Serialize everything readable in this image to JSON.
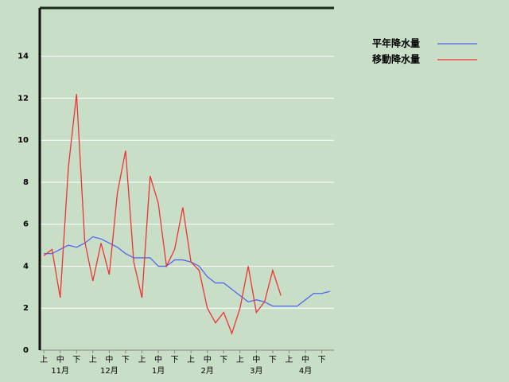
{
  "chart_data": {
    "type": "line",
    "categories": [
      "上",
      null,
      "中",
      null,
      "下",
      null,
      "上",
      null,
      "中",
      null,
      "下",
      null,
      "上",
      null,
      "中",
      null,
      "下",
      null,
      "上",
      null,
      "中",
      null,
      "下",
      null,
      "上",
      null,
      "中",
      null,
      "下",
      null,
      "上",
      null,
      "中",
      null,
      "下",
      null
    ],
    "months": [
      "11月",
      "12月",
      "1月",
      "2月",
      "3月",
      "4月"
    ],
    "series": [
      {
        "name": "平年降水量",
        "color": "#5566ee",
        "values": [
          4.6,
          4.6,
          4.8,
          5.0,
          4.9,
          5.1,
          5.4,
          5.3,
          5.1,
          4.9,
          4.6,
          4.4,
          4.4,
          4.4,
          4.0,
          4.0,
          4.3,
          4.3,
          4.2,
          4.0,
          3.5,
          3.2,
          3.2,
          2.9,
          2.6,
          2.3,
          2.4,
          2.3,
          2.1,
          2.1,
          2.1,
          2.1,
          2.4,
          2.7,
          2.7,
          2.8
        ]
      },
      {
        "name": "移動降水量",
        "color": "#ee3333",
        "values": [
          4.5,
          4.8,
          2.5,
          8.7,
          12.2,
          5.2,
          3.3,
          5.1,
          3.6,
          7.5,
          9.5,
          4.2,
          2.5,
          8.3,
          7.0,
          4.0,
          4.8,
          6.8,
          4.2,
          3.8,
          2.0,
          1.3,
          1.8,
          0.8,
          2.0,
          4.0,
          1.8,
          2.3,
          3.8,
          2.6,
          null,
          null,
          null,
          null,
          null,
          null
        ]
      }
    ],
    "ylim": [
      0,
      16.3
    ],
    "yticks": [
      0,
      2,
      4,
      6,
      8,
      10,
      12,
      14
    ],
    "grid": true
  }
}
